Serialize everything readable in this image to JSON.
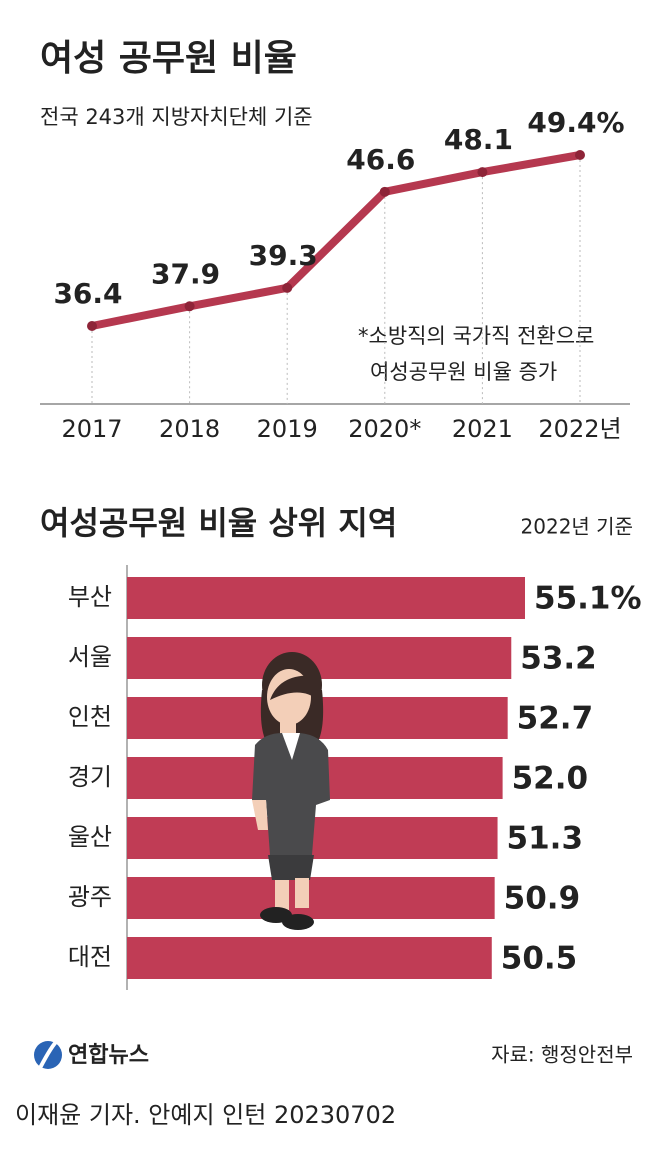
{
  "chart_data": [
    {
      "type": "line",
      "title": "여성 공무원 비율",
      "subtitle": "전국 243개 지방자치단체 기준",
      "categories": [
        "2017",
        "2018",
        "2019",
        "2020*",
        "2021",
        "2022년"
      ],
      "values": [
        36.4,
        37.9,
        39.3,
        46.6,
        48.1,
        49.4
      ],
      "value_labels": [
        "36.4",
        "37.9",
        "39.3",
        "46.6",
        "48.1",
        "49.4%"
      ],
      "annotation": [
        "*소방직의 국가직 전환으로",
        "여성공무원 비율 증가"
      ],
      "color": "#b5384f"
    },
    {
      "type": "bar",
      "title": "여성공무원 비율 상위 지역",
      "subtitle": "2022년 기준",
      "categories": [
        "부산",
        "서울",
        "인천",
        "경기",
        "울산",
        "광주",
        "대전"
      ],
      "values": [
        55.1,
        53.2,
        52.7,
        52.0,
        51.3,
        50.9,
        50.5
      ],
      "value_labels": [
        "55.1%",
        "53.2",
        "52.7",
        "52.0",
        "51.3",
        "50.9",
        "50.5"
      ],
      "color": "#c03c55"
    }
  ],
  "footer": {
    "logo": "연합뉴스",
    "source": "자료: 행정안전부",
    "credit": "이재윤 기자. 안예지 인턴  20230702"
  }
}
